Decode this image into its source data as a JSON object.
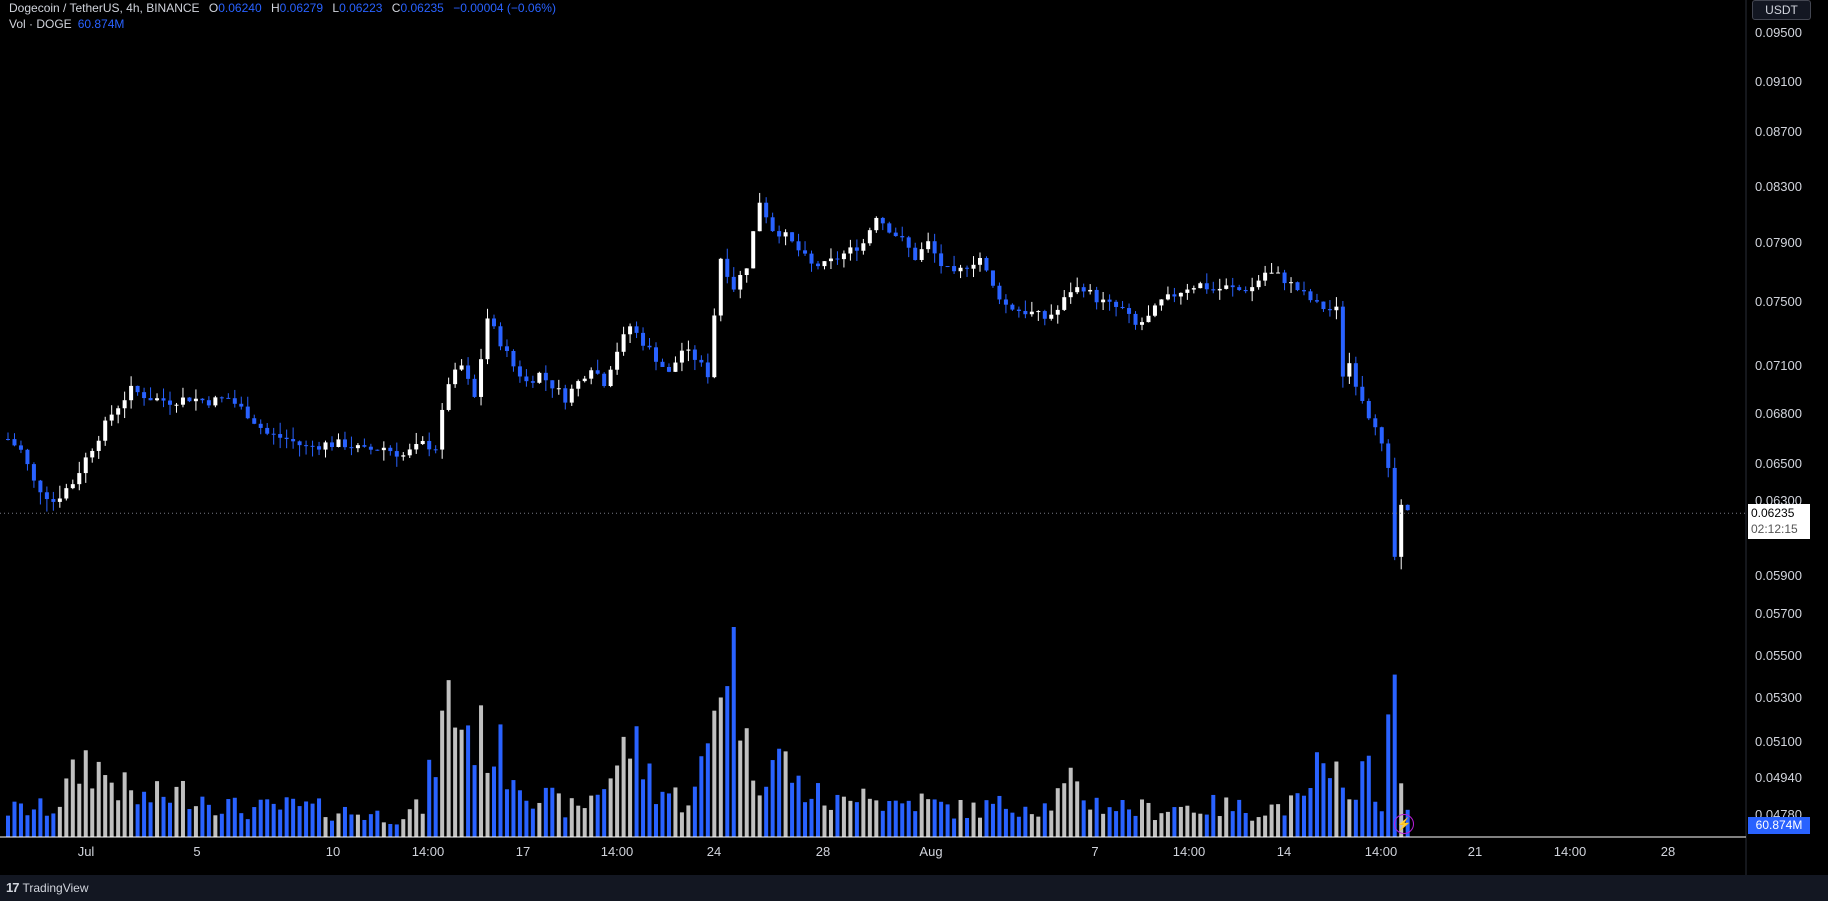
{
  "legend": {
    "symbol": "Dogecoin / TetherUS, 4h, BINANCE",
    "open_label": "O",
    "open": "0.06240",
    "high_label": "H",
    "high": "0.06279",
    "low_label": "L",
    "low": "0.06223",
    "close_label": "C",
    "close": "0.06235",
    "change": "−0.00004 (−0.06%)"
  },
  "volume_legend": {
    "label": "Vol · DOGE",
    "value": "60.874M"
  },
  "currency_button": "USDT",
  "last_price_tag": {
    "price": "0.06235",
    "countdown": "02:12:15"
  },
  "volume_tag": "60.874M",
  "footer": {
    "brand": "TradingView"
  },
  "icons": {
    "alert": "lightning-icon",
    "brand": "tradingview-logo-icon"
  },
  "colors": {
    "up": "#ffffff",
    "down": "#2962ff",
    "background": "#000000"
  },
  "chart_data": {
    "type": "candlestick",
    "symbol": "DOGEUSDT",
    "timeframe": "4h",
    "y_axis_ticks": [
      "0.09500",
      "0.09100",
      "0.08700",
      "0.08300",
      "0.07900",
      "0.07500",
      "0.07100",
      "0.06800",
      "0.06500",
      "0.06300",
      "0.05900",
      "0.05700",
      "0.05500",
      "0.05300",
      "0.05100",
      "0.04940",
      "0.04780"
    ],
    "x_axis_ticks": [
      "Jul",
      "5",
      "10",
      "14:00",
      "17",
      "14:00",
      "24",
      "28",
      "Aug",
      "7",
      "14:00",
      "14",
      "14:00",
      "21",
      "14:00",
      "28"
    ],
    "last_price": 0.06235,
    "price_path": [
      [
        0,
        0.0665
      ],
      [
        2,
        0.0658
      ],
      [
        4,
        0.064
      ],
      [
        7,
        0.063
      ],
      [
        10,
        0.064
      ],
      [
        13,
        0.066
      ],
      [
        16,
        0.068
      ],
      [
        19,
        0.0695
      ],
      [
        22,
        0.069
      ],
      [
        25,
        0.0688
      ],
      [
        28,
        0.069
      ],
      [
        31,
        0.0688
      ],
      [
        34,
        0.069
      ],
      [
        37,
        0.068
      ],
      [
        40,
        0.0668
      ],
      [
        43,
        0.0665
      ],
      [
        46,
        0.066
      ],
      [
        49,
        0.0662
      ],
      [
        52,
        0.0662
      ],
      [
        55,
        0.0658
      ],
      [
        58,
        0.066
      ],
      [
        61,
        0.0655
      ],
      [
        64,
        0.0662
      ],
      [
        66,
        0.066
      ],
      [
        68,
        0.07
      ],
      [
        70,
        0.071
      ],
      [
        72,
        0.069
      ],
      [
        74,
        0.074
      ],
      [
        76,
        0.0725
      ],
      [
        78,
        0.071
      ],
      [
        80,
        0.07
      ],
      [
        82,
        0.0705
      ],
      [
        84,
        0.0698
      ],
      [
        86,
        0.069
      ],
      [
        88,
        0.07
      ],
      [
        90,
        0.071
      ],
      [
        92,
        0.07
      ],
      [
        94,
        0.072
      ],
      [
        96,
        0.0735
      ],
      [
        98,
        0.0725
      ],
      [
        100,
        0.0715
      ],
      [
        102,
        0.0705
      ],
      [
        104,
        0.072
      ],
      [
        106,
        0.0715
      ],
      [
        108,
        0.0705
      ],
      [
        110,
        0.078
      ],
      [
        112,
        0.076
      ],
      [
        114,
        0.0775
      ],
      [
        116,
        0.082
      ],
      [
        118,
        0.08
      ],
      [
        120,
        0.0795
      ],
      [
        122,
        0.0785
      ],
      [
        124,
        0.0775
      ],
      [
        126,
        0.0775
      ],
      [
        128,
        0.078
      ],
      [
        130,
        0.0785
      ],
      [
        132,
        0.079
      ],
      [
        134,
        0.081
      ],
      [
        136,
        0.08
      ],
      [
        138,
        0.0792
      ],
      [
        140,
        0.078
      ],
      [
        142,
        0.079
      ],
      [
        144,
        0.0775
      ],
      [
        146,
        0.0768
      ],
      [
        148,
        0.0775
      ],
      [
        150,
        0.078
      ],
      [
        152,
        0.076
      ],
      [
        154,
        0.0748
      ],
      [
        156,
        0.0745
      ],
      [
        158,
        0.0743
      ],
      [
        160,
        0.074
      ],
      [
        162,
        0.0745
      ],
      [
        164,
        0.0758
      ],
      [
        166,
        0.076
      ],
      [
        168,
        0.0752
      ],
      [
        170,
        0.0748
      ],
      [
        172,
        0.0745
      ],
      [
        174,
        0.0735
      ],
      [
        176,
        0.074
      ],
      [
        178,
        0.075
      ],
      [
        180,
        0.0755
      ],
      [
        182,
        0.076
      ],
      [
        184,
        0.0762
      ],
      [
        186,
        0.0758
      ],
      [
        188,
        0.076
      ],
      [
        190,
        0.0758
      ],
      [
        192,
        0.076
      ],
      [
        194,
        0.077
      ],
      [
        196,
        0.0768
      ],
      [
        198,
        0.0762
      ],
      [
        200,
        0.0755
      ],
      [
        202,
        0.0748
      ],
      [
        204,
        0.0745
      ],
      [
        205,
        0.0745
      ],
      [
        206,
        0.0705
      ],
      [
        207,
        0.0712
      ],
      [
        208,
        0.07
      ],
      [
        209,
        0.069
      ],
      [
        210,
        0.068
      ],
      [
        211,
        0.0675
      ],
      [
        212,
        0.066
      ],
      [
        213,
        0.0645
      ],
      [
        214,
        0.06
      ],
      [
        215,
        0.0625
      ],
      [
        216,
        0.0623
      ]
    ],
    "volume_path": [
      [
        0,
        16
      ],
      [
        7,
        17
      ],
      [
        12,
        46
      ],
      [
        20,
        22
      ],
      [
        28,
        27
      ],
      [
        36,
        16
      ],
      [
        44,
        18
      ],
      [
        52,
        15
      ],
      [
        60,
        12
      ],
      [
        64,
        18
      ],
      [
        68,
        80
      ],
      [
        72,
        60
      ],
      [
        74,
        57
      ],
      [
        78,
        40
      ],
      [
        82,
        24
      ],
      [
        86,
        18
      ],
      [
        88,
        16
      ],
      [
        90,
        24
      ],
      [
        94,
        42
      ],
      [
        96,
        58
      ],
      [
        100,
        30
      ],
      [
        104,
        22
      ],
      [
        106,
        26
      ],
      [
        108,
        52
      ],
      [
        110,
        105
      ],
      [
        112,
        120
      ],
      [
        114,
        50
      ],
      [
        116,
        40
      ],
      [
        118,
        46
      ],
      [
        120,
        45
      ],
      [
        122,
        30
      ],
      [
        126,
        22
      ],
      [
        128,
        20
      ],
      [
        130,
        20
      ],
      [
        132,
        40
      ],
      [
        134,
        22
      ],
      [
        136,
        20
      ],
      [
        138,
        20
      ],
      [
        140,
        22
      ],
      [
        144,
        18
      ],
      [
        148,
        16
      ],
      [
        152,
        18
      ],
      [
        156,
        20
      ],
      [
        160,
        18
      ],
      [
        164,
        30
      ],
      [
        168,
        20
      ],
      [
        172,
        18
      ],
      [
        176,
        16
      ],
      [
        180,
        18
      ],
      [
        184,
        18
      ],
      [
        188,
        18
      ],
      [
        192,
        16
      ],
      [
        196,
        18
      ],
      [
        200,
        20
      ],
      [
        202,
        42
      ],
      [
        204,
        26
      ],
      [
        206,
        48
      ],
      [
        208,
        20
      ],
      [
        210,
        48
      ],
      [
        212,
        20
      ],
      [
        214,
        90
      ],
      [
        215,
        30
      ],
      [
        216,
        12
      ]
    ]
  }
}
